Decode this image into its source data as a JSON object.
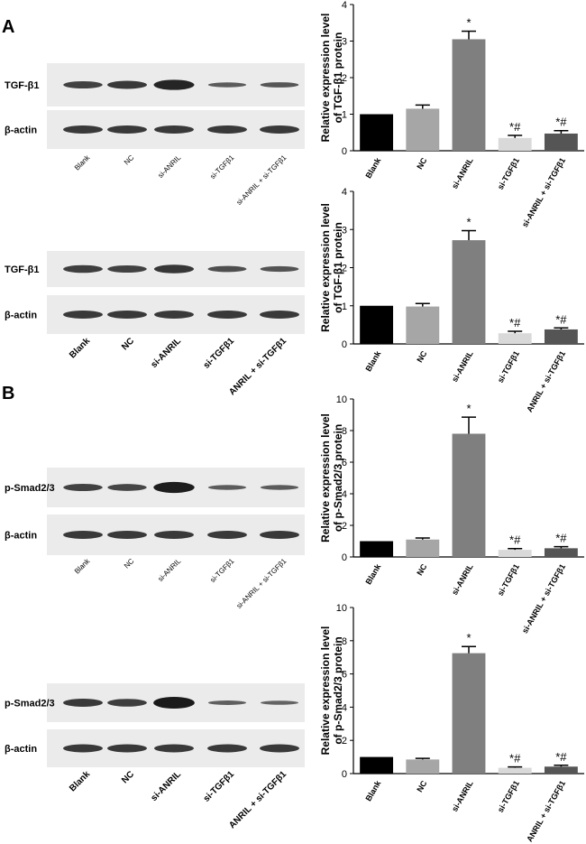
{
  "panels": [
    "A",
    "B"
  ],
  "blots": [
    {
      "rows": [
        "TGF-β1",
        "β-actin"
      ],
      "lanes": [
        "Blank",
        "NC",
        "si-ANRIL",
        "si-TGFβ1",
        "si-ANRIL + si-TGFβ1"
      ]
    },
    {
      "rows": [
        "TGF-β1",
        "β-actin"
      ],
      "lanes": [
        "Blank",
        "NC",
        "si-ANRIL",
        "si-TGFβ1",
        "ANRIL + si-TGFβ1"
      ]
    },
    {
      "rows": [
        "p-Smad2/3",
        "β-actin"
      ],
      "lanes": [
        "Blank",
        "NC",
        "si-ANRIL",
        "si-TGFβ1",
        "si-ANRIL + si-TGFβ1"
      ]
    },
    {
      "rows": [
        "p-Smad2/3",
        "β-actin"
      ],
      "lanes": [
        "Blank",
        "NC",
        "si-ANRIL",
        "si-TGFβ1",
        "ANRIL + si-TGFβ1"
      ]
    }
  ],
  "chart_data": [
    {
      "type": "bar",
      "ylabel": [
        "Relative expression level",
        "of TGF-β1 protein"
      ],
      "categories": [
        "Blank",
        "NC",
        "si-ANRIL",
        "si-TGFβ1",
        "si-ANRIL + si-TGFβ1"
      ],
      "values": [
        1,
        1.15,
        3.05,
        0.35,
        0.47
      ],
      "errors": [
        0,
        0.1,
        0.22,
        0.07,
        0.08
      ],
      "annotations": [
        null,
        null,
        "*",
        "*#",
        "*#"
      ],
      "colors": [
        "#000000",
        "#a6a6a6",
        "#7f7f7f",
        "#d9d9d9",
        "#555555"
      ],
      "ylim": [
        0,
        4
      ],
      "yticks": [
        0,
        1,
        2,
        3,
        4
      ]
    },
    {
      "type": "bar",
      "ylabel": [
        "Relative expression level",
        "of TGF-β1 protein"
      ],
      "categories": [
        "Blank",
        "NC",
        "si-ANRIL",
        "si-TGFβ1",
        "ANRIL + si-TGFβ1"
      ],
      "values": [
        1,
        0.98,
        2.72,
        0.28,
        0.38
      ],
      "errors": [
        0,
        0.08,
        0.25,
        0.05,
        0.04
      ],
      "annotations": [
        null,
        null,
        "*",
        "*#",
        "*#"
      ],
      "colors": [
        "#000000",
        "#a6a6a6",
        "#7f7f7f",
        "#d9d9d9",
        "#555555"
      ],
      "ylim": [
        0,
        4
      ],
      "yticks": [
        0,
        1,
        2,
        3,
        4
      ]
    },
    {
      "type": "bar",
      "ylabel": [
        "Relative expression level",
        "of p-Smad2/3 protein"
      ],
      "categories": [
        "Blank",
        "NC",
        "si-ANRIL",
        "si-TGFβ1",
        "si-ANRIL + si-TGFβ1"
      ],
      "values": [
        1,
        1.1,
        7.8,
        0.45,
        0.55
      ],
      "errors": [
        0,
        0.1,
        1.05,
        0.08,
        0.1
      ],
      "annotations": [
        null,
        null,
        "*",
        "*#",
        "*#"
      ],
      "colors": [
        "#000000",
        "#a6a6a6",
        "#7f7f7f",
        "#d9d9d9",
        "#555555"
      ],
      "ylim": [
        0,
        10
      ],
      "yticks": [
        0,
        2,
        4,
        6,
        8,
        10
      ]
    },
    {
      "type": "bar",
      "ylabel": [
        "Relative expression level",
        "of p-Smad2/3 protein"
      ],
      "categories": [
        "Blank",
        "NC",
        "si-ANRIL",
        "si-TGFβ1",
        "ANRIL + si-TGFβ1"
      ],
      "values": [
        1,
        0.85,
        7.25,
        0.35,
        0.42
      ],
      "errors": [
        0,
        0.07,
        0.4,
        0.05,
        0.08
      ],
      "annotations": [
        null,
        null,
        "*",
        "*#",
        "*#"
      ],
      "colors": [
        "#000000",
        "#a6a6a6",
        "#7f7f7f",
        "#d9d9d9",
        "#555555"
      ],
      "ylim": [
        0,
        10
      ],
      "yticks": [
        0,
        2,
        4,
        6,
        8,
        10
      ]
    }
  ]
}
